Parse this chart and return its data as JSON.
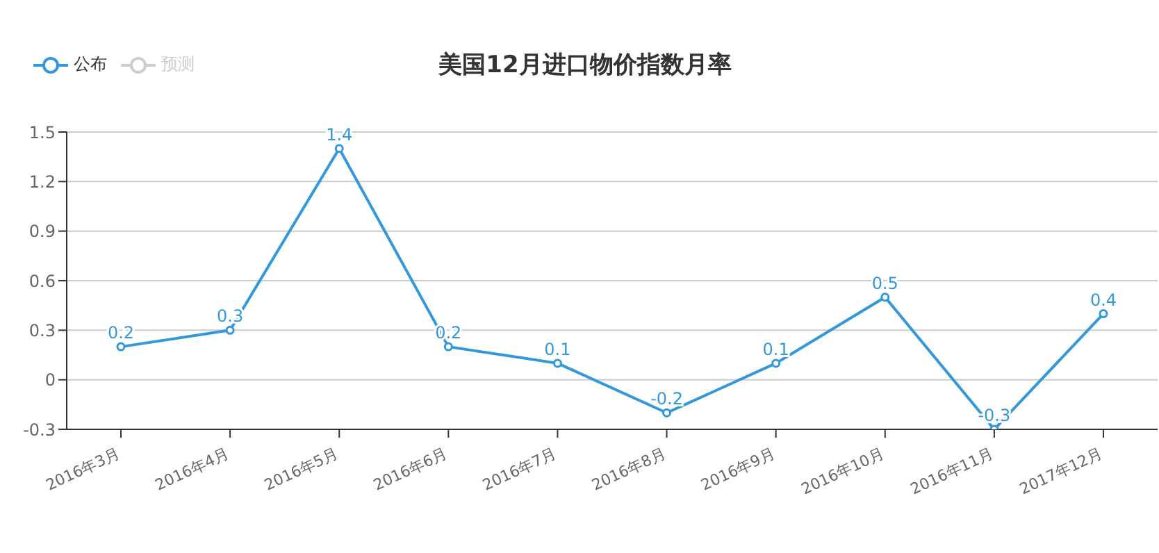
{
  "chart_data": {
    "type": "line",
    "title": "美国12月进口物价指数月率",
    "categories": [
      "2016年3月",
      "2016年4月",
      "2016年5月",
      "2016年6月",
      "2016年7月",
      "2016年8月",
      "2016年9月",
      "2016年10月",
      "2016年11月",
      "2017年12月"
    ],
    "series": [
      {
        "name": "公布",
        "color": "#3398db",
        "values": [
          0.2,
          0.3,
          1.4,
          0.2,
          0.1,
          -0.2,
          0.1,
          0.5,
          -0.3,
          0.4
        ]
      },
      {
        "name": "预测",
        "color": "#cccccc",
        "values": [
          null,
          null,
          null,
          null,
          null,
          null,
          null,
          null,
          null,
          null
        ]
      }
    ],
    "ylim": [
      -0.3,
      1.5
    ],
    "yticks": [
      -0.3,
      0,
      0.3,
      0.6,
      0.9,
      1.2,
      1.5
    ],
    "grid": "y",
    "legend": "top left",
    "marker": "circle",
    "line_style": "solid",
    "data_labels": true
  }
}
